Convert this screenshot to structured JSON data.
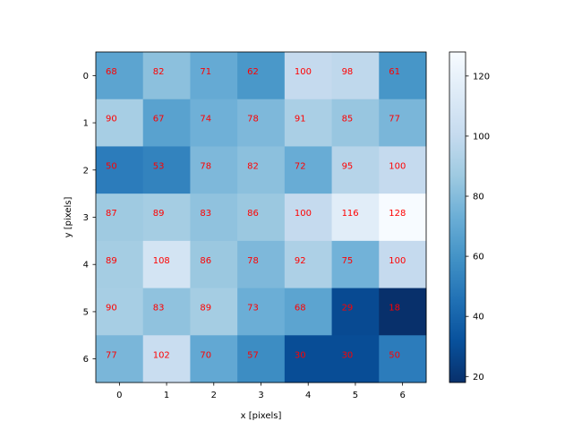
{
  "chart_data": {
    "type": "heatmap",
    "xlabel": "x [pixels]",
    "ylabel": "y [pixels]",
    "x_categories": [
      "0",
      "1",
      "2",
      "3",
      "4",
      "5",
      "6"
    ],
    "y_categories": [
      "0",
      "1",
      "2",
      "3",
      "4",
      "5",
      "6"
    ],
    "values": [
      [
        68,
        82,
        71,
        62,
        100,
        98,
        61
      ],
      [
        90,
        67,
        74,
        78,
        91,
        85,
        77
      ],
      [
        50,
        53,
        78,
        82,
        72,
        95,
        100
      ],
      [
        87,
        89,
        83,
        86,
        100,
        116,
        128
      ],
      [
        89,
        108,
        86,
        78,
        92,
        75,
        100
      ],
      [
        90,
        83,
        89,
        73,
        68,
        29,
        18
      ],
      [
        77,
        102,
        70,
        57,
        30,
        30,
        50
      ]
    ],
    "colormap": "Blues_r",
    "value_range": [
      18,
      128
    ],
    "label_color": "#ff0000",
    "colorbar_ticks": [
      "20",
      "40",
      "60",
      "80",
      "100",
      "120"
    ],
    "colorbar_tick_values": [
      20,
      40,
      60,
      80,
      100,
      120
    ],
    "grid": false
  }
}
